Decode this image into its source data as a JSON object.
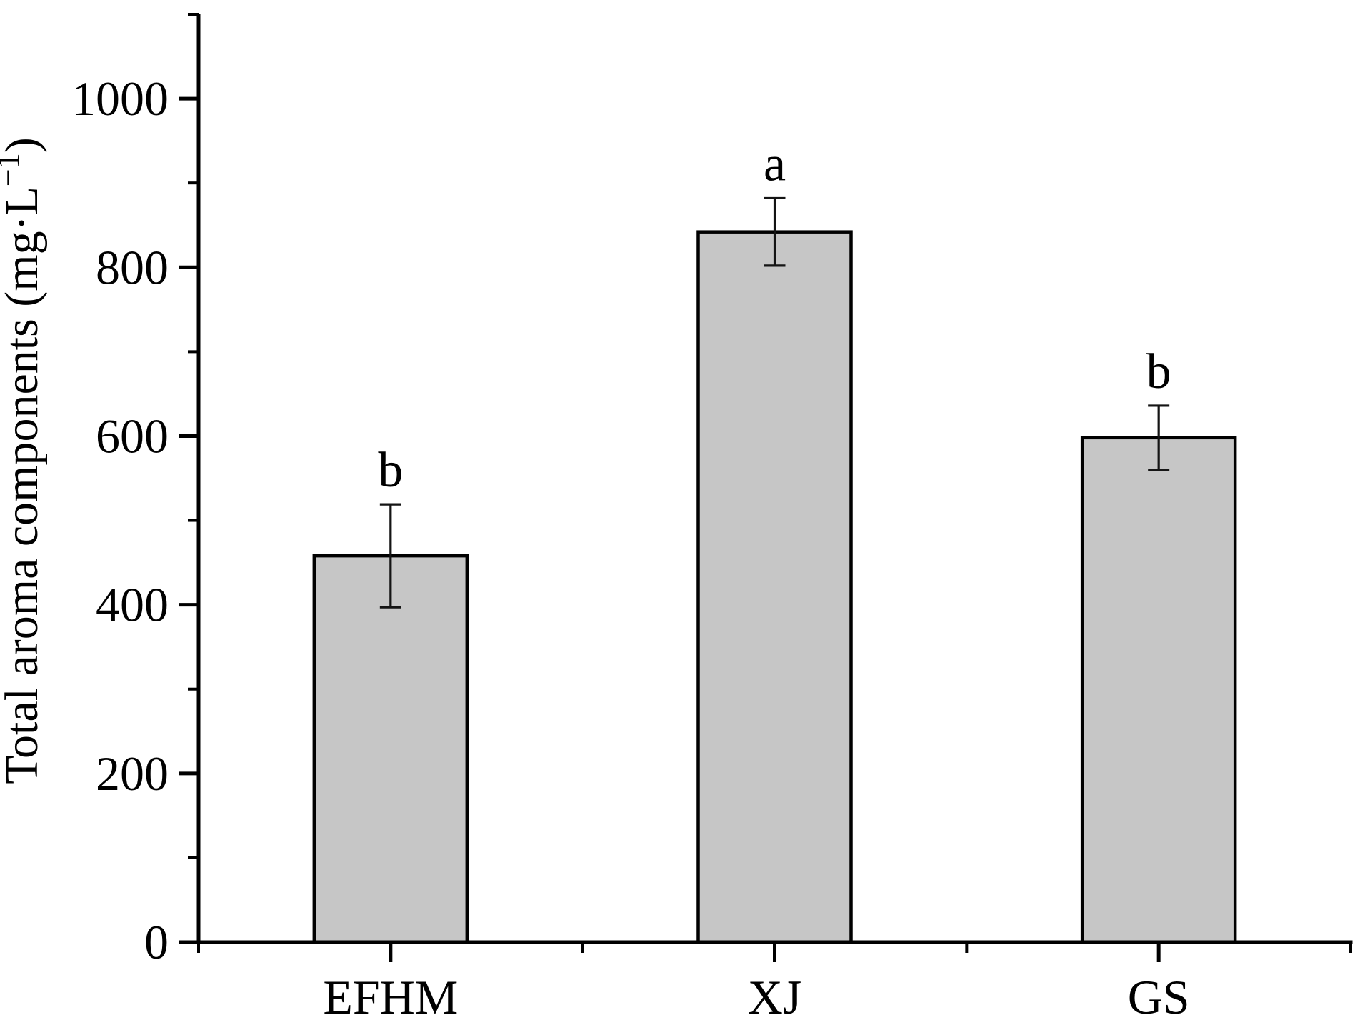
{
  "figure": {
    "background_color": "#ffffff",
    "text_color": "#000000"
  },
  "chart_data": {
    "type": "bar",
    "title": "",
    "xlabel": "",
    "ylabel": "Total aroma components (mg·L⁻¹)",
    "ylabel_parts": {
      "prefix": "Total aroma components (mg·L",
      "superscript": "−1",
      "suffix": ")"
    },
    "categories": [
      "EFHM",
      "XJ",
      "GS"
    ],
    "values": [
      458,
      842,
      598
    ],
    "error_bars": [
      61,
      40,
      38
    ],
    "significance_letters": [
      "b",
      "a",
      "b"
    ],
    "ylim": [
      0,
      1100
    ],
    "ytick_major_values": [
      0,
      200,
      400,
      600,
      800,
      1000
    ],
    "ytick_labels": [
      "0",
      "200",
      "400",
      "600",
      "800",
      "1000"
    ],
    "ytick_minor_values": [
      100,
      300,
      500,
      700,
      900,
      1100
    ],
    "grid": "off",
    "legend": "none",
    "bar_fill_color": "#c6c6c6",
    "bar_border_color": "#000000",
    "error_bar_color": "#141414",
    "axis_color": "#000000"
  }
}
